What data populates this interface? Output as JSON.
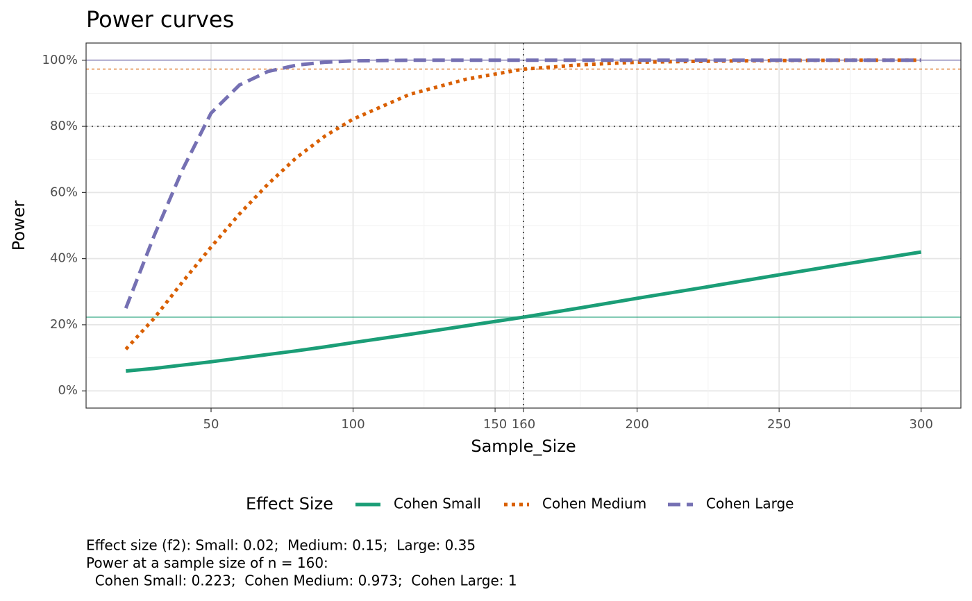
{
  "chart_data": {
    "type": "line",
    "title": "Power curves",
    "x_label": "Sample_Size",
    "y_label": "Power",
    "x": [
      20,
      30,
      40,
      50,
      60,
      70,
      80,
      90,
      100,
      120,
      140,
      160,
      180,
      200,
      225,
      250,
      275,
      300
    ],
    "series": [
      {
        "name": "Cohen Small",
        "color": "#1b9e77",
        "dash": "solid",
        "power_at_n": 0.223,
        "values": [
          0.06,
          0.068,
          0.078,
          0.088,
          0.099,
          0.11,
          0.121,
          0.133,
          0.146,
          0.171,
          0.197,
          0.223,
          0.251,
          0.28,
          0.315,
          0.351,
          0.386,
          0.42
        ]
      },
      {
        "name": "Cohen Medium",
        "color": "#d95f02",
        "dash": "dotted",
        "power_at_n": 0.973,
        "values": [
          0.126,
          0.22,
          0.33,
          0.435,
          0.535,
          0.625,
          0.705,
          0.77,
          0.822,
          0.897,
          0.943,
          0.973,
          0.986,
          0.994,
          0.997,
          0.999,
          1,
          1
        ]
      },
      {
        "name": "Cohen Large",
        "color": "#7570b3",
        "dash": "dashed",
        "power_at_n": 1,
        "values": [
          0.25,
          0.47,
          0.67,
          0.84,
          0.925,
          0.966,
          0.985,
          0.994,
          0.998,
          1,
          1,
          1,
          1,
          1,
          1,
          1,
          1,
          1
        ]
      }
    ],
    "xlim": [
      6,
      314
    ],
    "ylim": [
      -0.052,
      1.052
    ],
    "xticks": [
      50,
      100,
      150,
      160,
      200,
      250,
      300
    ],
    "yticks": [
      {
        "value": 0,
        "label": "0%"
      },
      {
        "value": 0.2,
        "label": "20%"
      },
      {
        "value": 0.4,
        "label": "40%"
      },
      {
        "value": 0.6,
        "label": "60%"
      },
      {
        "value": 0.8,
        "label": "80%"
      },
      {
        "value": 1,
        "label": "100%"
      }
    ],
    "target_power": 0.8,
    "n_marker": 160,
    "grid": true,
    "legend_title": "Effect Size",
    "legend_position": "bottom",
    "caption": [
      "Effect size (f2): Small: 0.02;  Medium: 0.15;  Large: 0.35",
      "Power at a sample size of n = 160:",
      "  Cohen Small: 0.223;  Cohen Medium: 0.973;  Cohen Large: 1"
    ]
  }
}
